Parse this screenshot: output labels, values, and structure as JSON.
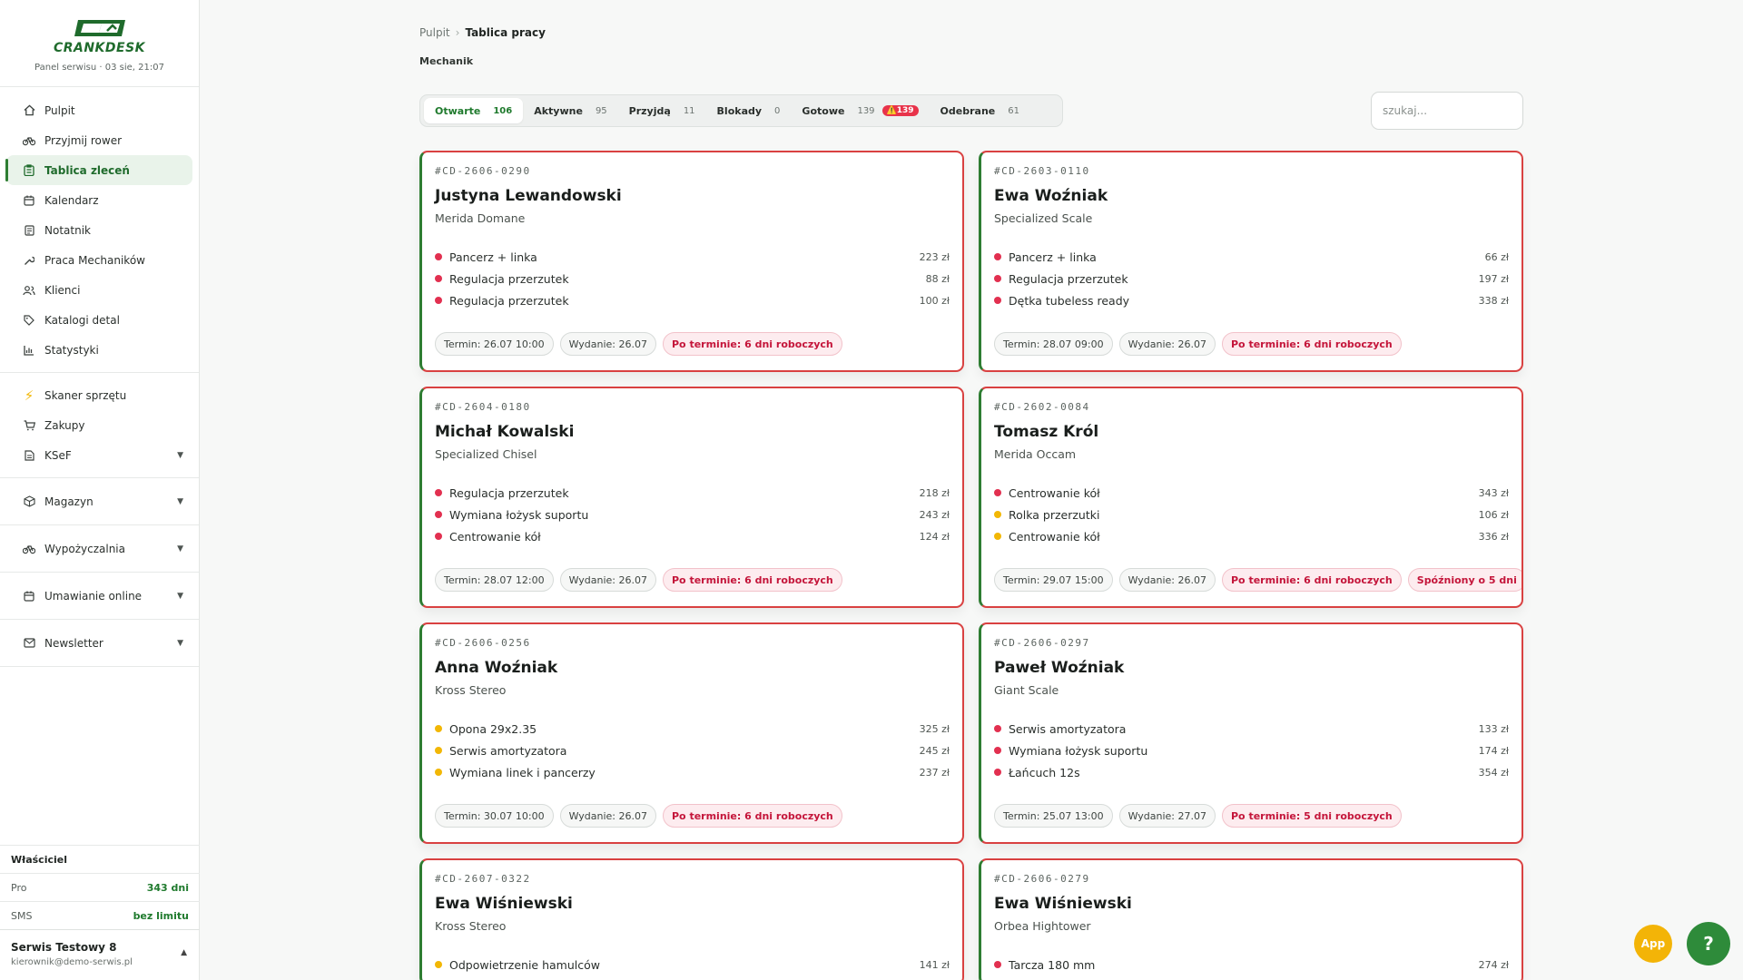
{
  "brand": {
    "name": "CRANKDESK",
    "subtitle": "Panel serwisu · 03 sie, 21:07"
  },
  "sidebar": {
    "items": [
      {
        "label": "Pulpit",
        "icon": "home-icon"
      },
      {
        "label": "Przyjmij rower",
        "icon": "bike-icon"
      },
      {
        "label": "Tablica zleceń",
        "icon": "clipboard-icon",
        "active": true
      },
      {
        "label": "Kalendarz",
        "icon": "calendar-icon"
      },
      {
        "label": "Notatnik",
        "icon": "notebook-icon"
      },
      {
        "label": "Praca Mechaników",
        "icon": "wrench-icon"
      },
      {
        "label": "Klienci",
        "icon": "users-icon"
      },
      {
        "label": "Katalogi detal",
        "icon": "tag-icon"
      },
      {
        "label": "Statystyki",
        "icon": "bar-chart-icon"
      }
    ],
    "tools": [
      {
        "label": "Skaner sprzętu",
        "icon": "lightning-icon"
      },
      {
        "label": "Zakupy",
        "icon": "cart-icon"
      },
      {
        "label": "KSeF",
        "icon": "document-icon",
        "expandable": true
      }
    ],
    "groups": [
      {
        "label": "Magazyn",
        "icon": "box-icon"
      },
      {
        "label": "Wypożyczalnia",
        "icon": "bike-icon"
      },
      {
        "label": "Umawianie online",
        "icon": "calendar-icon"
      },
      {
        "label": "Newsletter",
        "icon": "mail-icon"
      }
    ],
    "owner_title": "Właściciel",
    "plan_label": "Pro",
    "plan_value": "343 dni",
    "sms_label": "SMS",
    "sms_value": "bez limitu",
    "user_name": "Serwis Testowy 8",
    "user_email": "kierownik@demo-serwis.pl"
  },
  "breadcrumb": {
    "parent": "Pulpit",
    "current": "Tablica pracy"
  },
  "role": "Mechanik",
  "tabs": [
    {
      "label": "Otwarte",
      "count": "106",
      "active": true
    },
    {
      "label": "Aktywne",
      "count": "95"
    },
    {
      "label": "Przyjdą",
      "count": "11"
    },
    {
      "label": "Blokady",
      "count": "0"
    },
    {
      "label": "Gotowe",
      "count": "139",
      "warning": "⚠️139"
    },
    {
      "label": "Odebrane",
      "count": "61"
    }
  ],
  "search": {
    "placeholder": "szukaj..."
  },
  "cards": [
    {
      "id": "#CD-2606-0290",
      "name": "Justyna Lewandowski",
      "bike": "Merida Domane",
      "items": [
        {
          "label": "Pancerz + linka",
          "price": "223 zł",
          "color": "red"
        },
        {
          "label": "Regulacja przerzutek",
          "price": "88 zł",
          "color": "red"
        },
        {
          "label": "Regulacja przerzutek",
          "price": "100 zł",
          "color": "red"
        }
      ],
      "chips": [
        {
          "text": "Termin: 26.07 10:00"
        },
        {
          "text": "Wydanie: 26.07"
        },
        {
          "text": "Po terminie: 6 dni roboczych",
          "alert": true
        }
      ]
    },
    {
      "id": "#CD-2603-0110",
      "name": "Ewa Woźniak",
      "bike": "Specialized Scale",
      "items": [
        {
          "label": "Pancerz + linka",
          "price": "66 zł",
          "color": "red"
        },
        {
          "label": "Regulacja przerzutek",
          "price": "197 zł",
          "color": "red"
        },
        {
          "label": "Dętka tubeless ready",
          "price": "338 zł",
          "color": "red"
        }
      ],
      "chips": [
        {
          "text": "Termin: 28.07 09:00"
        },
        {
          "text": "Wydanie: 26.07"
        },
        {
          "text": "Po terminie: 6 dni roboczych",
          "alert": true
        }
      ]
    },
    {
      "id": "#CD-2604-0180",
      "name": "Michał Kowalski",
      "bike": "Specialized Chisel",
      "items": [
        {
          "label": "Regulacja przerzutek",
          "price": "218 zł",
          "color": "red"
        },
        {
          "label": "Wymiana łożysk suportu",
          "price": "243 zł",
          "color": "red"
        },
        {
          "label": "Centrowanie kół",
          "price": "124 zł",
          "color": "red"
        }
      ],
      "chips": [
        {
          "text": "Termin: 28.07 12:00"
        },
        {
          "text": "Wydanie: 26.07"
        },
        {
          "text": "Po terminie: 6 dni roboczych",
          "alert": true
        }
      ]
    },
    {
      "id": "#CD-2602-0084",
      "name": "Tomasz Król",
      "bike": "Merida Occam",
      "items": [
        {
          "label": "Centrowanie kół",
          "price": "343 zł",
          "color": "red"
        },
        {
          "label": "Rolka przerzutki",
          "price": "106 zł",
          "color": "yellow"
        },
        {
          "label": "Centrowanie kół",
          "price": "336 zł",
          "color": "yellow"
        }
      ],
      "chips": [
        {
          "text": "Termin: 29.07 15:00"
        },
        {
          "text": "Wydanie: 26.07"
        },
        {
          "text": "Po terminie: 6 dni roboczych",
          "alert": true
        },
        {
          "text": "Spóźniony o 5 dni",
          "alert": true
        }
      ]
    },
    {
      "id": "#CD-2606-0256",
      "name": "Anna Woźniak",
      "bike": "Kross Stereo",
      "items": [
        {
          "label": "Opona 29x2.35",
          "price": "325 zł",
          "color": "yellow"
        },
        {
          "label": "Serwis amortyzatora",
          "price": "245 zł",
          "color": "yellow"
        },
        {
          "label": "Wymiana linek i pancerzy",
          "price": "237 zł",
          "color": "yellow"
        }
      ],
      "chips": [
        {
          "text": "Termin: 30.07 10:00"
        },
        {
          "text": "Wydanie: 26.07"
        },
        {
          "text": "Po terminie: 6 dni roboczych",
          "alert": true
        }
      ]
    },
    {
      "id": "#CD-2606-0297",
      "name": "Paweł Woźniak",
      "bike": "Giant Scale",
      "items": [
        {
          "label": "Serwis amortyzatora",
          "price": "133 zł",
          "color": "red"
        },
        {
          "label": "Wymiana łożysk suportu",
          "price": "174 zł",
          "color": "red"
        },
        {
          "label": "Łańcuch 12s",
          "price": "354 zł",
          "color": "red"
        }
      ],
      "chips": [
        {
          "text": "Termin: 25.07 13:00"
        },
        {
          "text": "Wydanie: 27.07"
        },
        {
          "text": "Po terminie: 5 dni roboczych",
          "alert": true
        }
      ]
    },
    {
      "id": "#CD-2607-0322",
      "name": "Ewa Wiśniewski",
      "bike": "Kross Stereo",
      "items": [
        {
          "label": "Odpowietrzenie hamulców",
          "price": "141 zł",
          "color": "yellow"
        }
      ],
      "chips": []
    },
    {
      "id": "#CD-2606-0279",
      "name": "Ewa Wiśniewski",
      "bike": "Orbea Hightower",
      "items": [
        {
          "label": "Tarcza 180 mm",
          "price": "274 zł",
          "color": "red"
        }
      ],
      "chips": []
    }
  ],
  "fab": {
    "app_label": "App",
    "help_label": "?"
  },
  "colors": {
    "accent": "#2e7d32",
    "alert": "#d94141",
    "warning": "#f2b705"
  }
}
